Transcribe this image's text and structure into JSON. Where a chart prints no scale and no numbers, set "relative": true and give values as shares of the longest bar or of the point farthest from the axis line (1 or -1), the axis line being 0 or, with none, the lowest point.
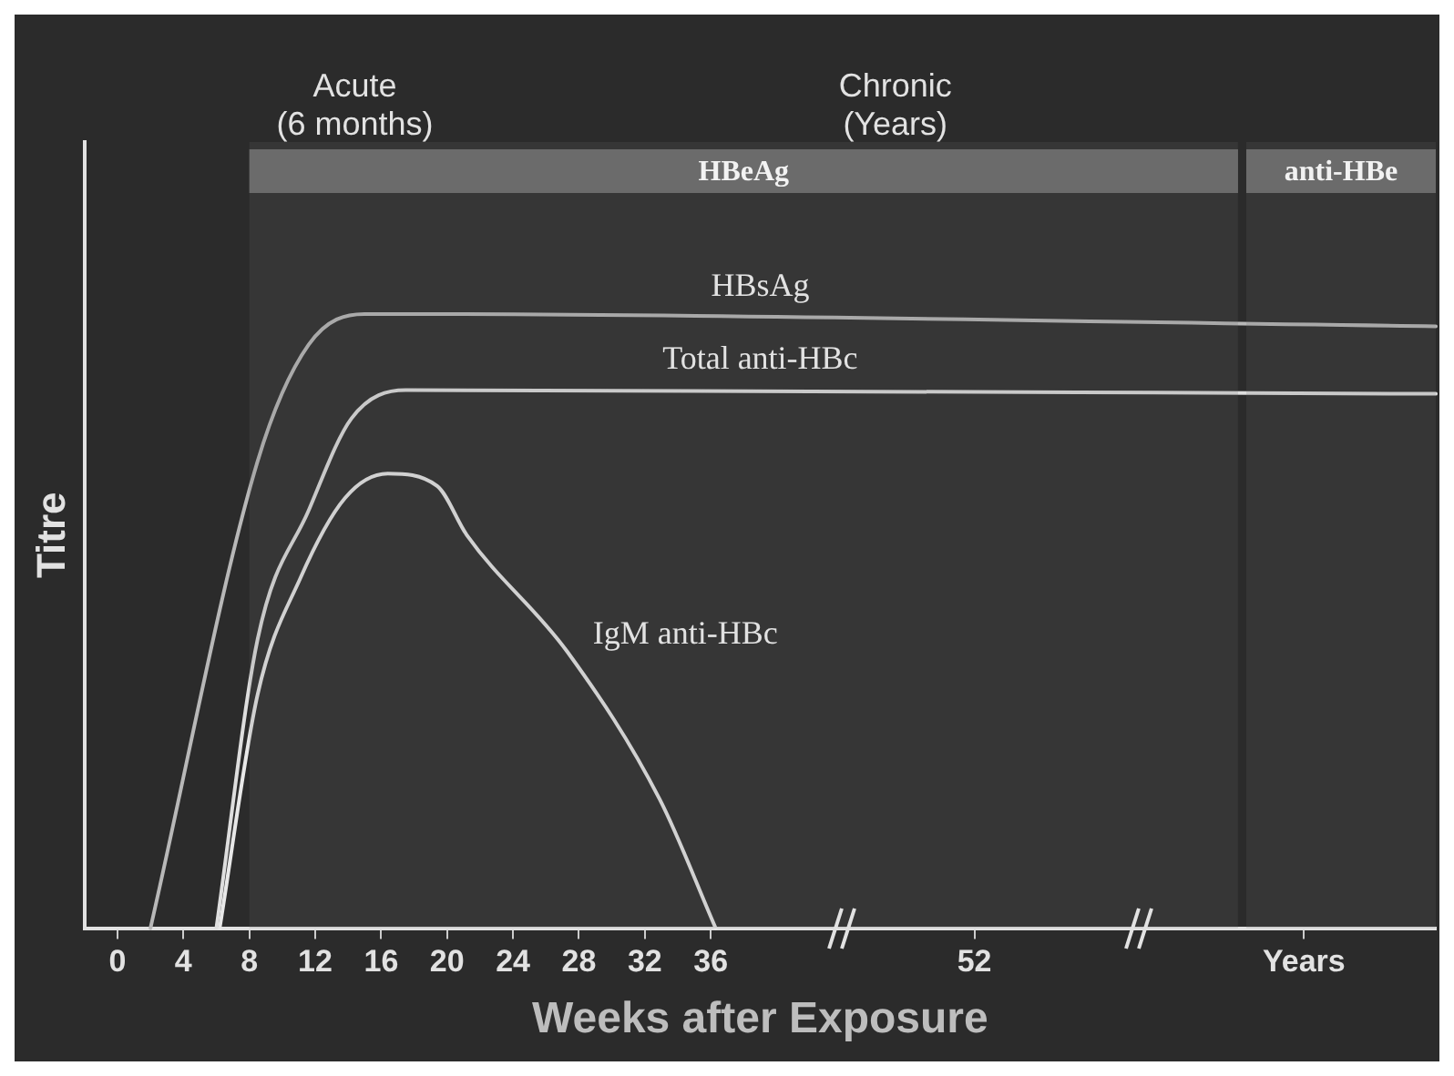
{
  "chart_data": {
    "type": "line",
    "relative": true,
    "ylabel": "Titre",
    "xlabel": "Weeks after Exposure",
    "xlim": [
      -2,
      80
    ],
    "xticks": [
      0,
      4,
      8,
      12,
      16,
      20,
      24,
      28,
      32,
      36,
      52,
      {
        "value": 72,
        "label": "Years"
      }
    ],
    "grid": false,
    "legend": false,
    "marker": "none",
    "line_style": "solid",
    "annotations": [
      "Acute\n(6 months)",
      "Chronic\n(Years)"
    ],
    "bands": [
      {
        "axis": "x",
        "from": 8,
        "to": 68,
        "label": "HBeAg",
        "color": "#6b6b6b"
      },
      {
        "axis": "x",
        "from": 68.5,
        "to": 80,
        "label": "anti-HBe",
        "color": "#6b6b6b"
      }
    ],
    "series": [
      {
        "name": "HBsAg",
        "color": "#b8b8b8",
        "x": [
          2,
          8.5,
          11.6,
          15,
          17,
          80
        ],
        "values": [
          0,
          0.76,
          0.95,
          1,
          1,
          0.98
        ]
      },
      {
        "name": "Total anti-HBc",
        "color": "#dedede",
        "x": [
          6,
          8.5,
          11.6,
          14.2,
          17.5,
          80
        ],
        "values": [
          0,
          0.47,
          0.68,
          0.83,
          0.876,
          0.87
        ]
      },
      {
        "name": "IgM anti-HBc",
        "color": "#e8e8e8",
        "x": [
          6.2,
          8.5,
          11.1,
          13.8,
          16.4,
          19.4,
          21.2,
          27.3,
          32.9,
          36.3
        ],
        "values": [
          0,
          0.38,
          0.57,
          0.7,
          0.74,
          0.72,
          0.64,
          0.45,
          0.21,
          0
        ]
      }
    ]
  }
}
